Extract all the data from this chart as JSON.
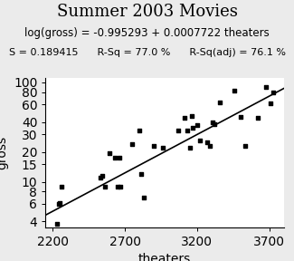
{
  "title": "Summer 2003 Movies",
  "equation": "log(gross) = -0.995293 + 0.0007722 theaters",
  "stats": "S = 0.189415      R-Sq = 77.0 %      R-Sq(adj) = 76.1 %",
  "xlabel": "theaters",
  "ylabel": "gross",
  "intercept": -0.995293,
  "slope": 0.0007722,
  "x_scatter": [
    2230,
    2240,
    2250,
    2260,
    2530,
    2540,
    2560,
    2590,
    2630,
    2650,
    2660,
    2670,
    2750,
    2800,
    2810,
    2830,
    2900,
    2960,
    3070,
    3110,
    3130,
    3150,
    3160,
    3170,
    3200,
    3220,
    3270,
    3290,
    3310,
    3320,
    3360,
    3460,
    3500,
    3530,
    3620,
    3680,
    3710,
    3730
  ],
  "y_scatter": [
    3.8,
    6.0,
    6.1,
    9.0,
    11.0,
    11.5,
    9.0,
    19.5,
    17.5,
    9.0,
    17.5,
    9.0,
    24.0,
    33.0,
    12.0,
    7.0,
    23.0,
    22.0,
    33.0,
    44.0,
    33.0,
    22.0,
    46.0,
    35.0,
    37.0,
    26.0,
    25.0,
    23.0,
    40.0,
    38.0,
    63.0,
    83.0,
    45.0,
    23.0,
    44.0,
    90.0,
    62.0,
    80.0
  ],
  "xlim": [
    2150,
    3800
  ],
  "ylim_log": [
    3.5,
    110
  ],
  "yticks": [
    4.0,
    6.0,
    8.0,
    10.0,
    15.0,
    20.0,
    30.0,
    40.0,
    60.0,
    80.0,
    100.0
  ],
  "xticks": [
    2200,
    2700,
    3200,
    3700
  ],
  "background_color": "#ebebeb",
  "plot_bg": "#ffffff",
  "scatter_color": "black",
  "line_color": "black",
  "title_fontsize": 13,
  "label_fontsize": 10,
  "stats_fontsize": 8,
  "equation_fontsize": 8.5
}
